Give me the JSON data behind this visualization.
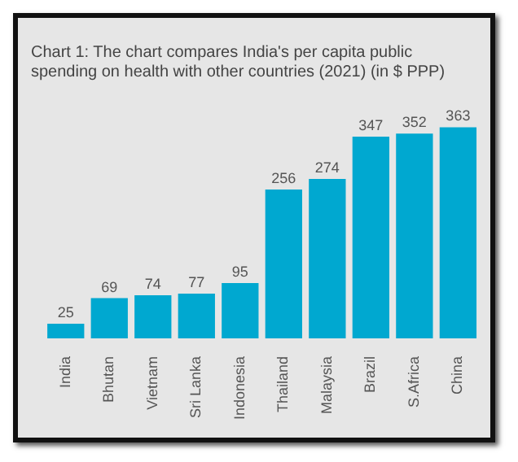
{
  "chart_data": {
    "type": "bar",
    "title": "Chart 1: The chart compares India's per capita public spending on health with other countries (2021) (in $ PPP)",
    "categories": [
      "India",
      "Bhutan",
      "Vietnam",
      "Sri Lanka",
      "Indonesia",
      "Thailand",
      "Malaysia",
      "Brazil",
      "S.Africa",
      "China"
    ],
    "values": [
      25,
      69,
      74,
      77,
      95,
      256,
      274,
      347,
      352,
      363
    ],
    "color": "#00a8d0",
    "relative": false,
    "data_labels": true,
    "grid": false,
    "legend": false
  }
}
